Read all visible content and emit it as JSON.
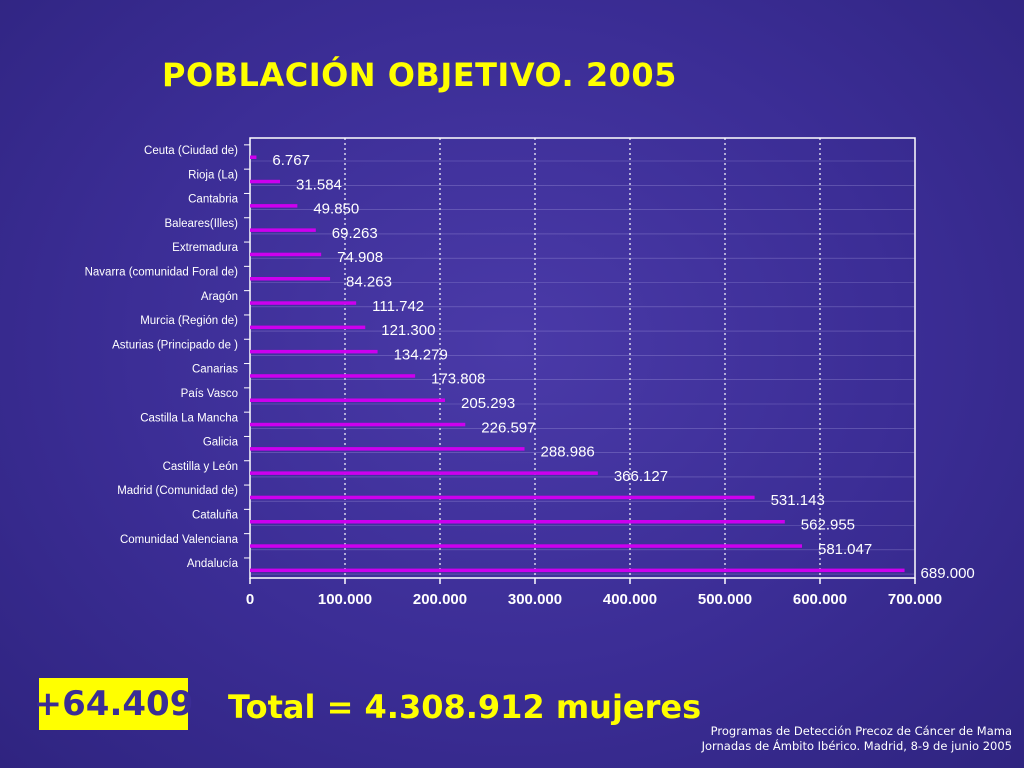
{
  "title": "POBLACIÓN OBJETIVO. 2005",
  "increment_badge": "+64.409",
  "total_text": "Total = 4.308.912 mujeres",
  "footer": {
    "line1": "Programas de Detección Precoz de Cáncer de Mama",
    "line2": "Jornadas de Ámbito Ibérico. Madrid, 8-9 de junio 2005"
  },
  "colors": {
    "background": "#3b2d95",
    "accent": "#ffff00",
    "bar": "#cc00ee"
  },
  "chart_data": {
    "type": "bar",
    "orientation": "horizontal",
    "categories": [
      "Ceuta (Ciudad de)",
      "Rioja (La)",
      "Cantabria",
      "Baleares(Illes)",
      "Extremadura",
      "Navarra (comunidad Foral de)",
      "Aragón",
      "Murcia (Región de)",
      "Asturias (Principado de )",
      "Canarias",
      "País Vasco",
      "Castilla La Mancha",
      "Galicia",
      "Castilla y León",
      "Madrid (Comunidad de)",
      "Cataluña",
      "Comunidad Valenciana",
      "Andalucía"
    ],
    "values": [
      6767,
      31584,
      49850,
      69263,
      74908,
      84263,
      111742,
      121300,
      134279,
      173808,
      205293,
      226597,
      288986,
      366127,
      531143,
      562955,
      581047,
      689000
    ],
    "value_labels": [
      "6.767",
      "31.584",
      "49.850",
      "69.263",
      "74.908",
      "84.263",
      "111.742",
      "121.300",
      "134.279",
      "173.808",
      "205.293",
      "226.597",
      "288.986",
      "366.127",
      "531.143",
      "562.955",
      "581.047",
      "689.000"
    ],
    "xticks": [
      0,
      100000,
      200000,
      300000,
      400000,
      500000,
      600000,
      700000
    ],
    "xtick_labels": [
      "0",
      "100.000",
      "200.000",
      "300.000",
      "400.000",
      "500.000",
      "600.000",
      "700.000"
    ],
    "xlim": [
      0,
      700000
    ],
    "grid": "vertical-dotted",
    "legend": "none"
  }
}
